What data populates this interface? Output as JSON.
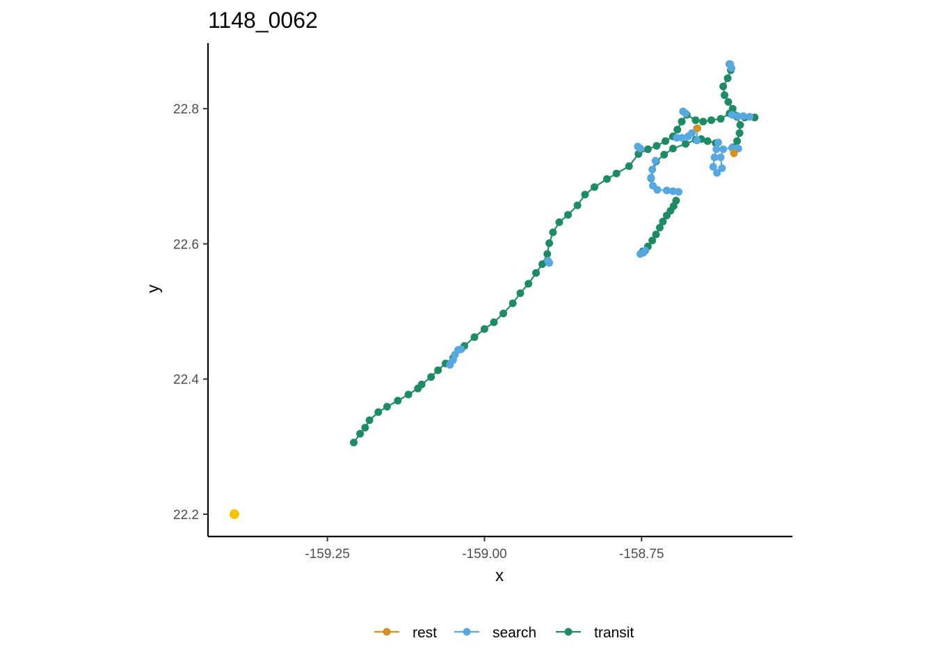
{
  "chart_data": {
    "type": "scatter",
    "title": "1148_0062",
    "xlabel": "x",
    "ylabel": "y",
    "xlim": [
      -159.44,
      -158.51
    ],
    "ylim": [
      22.167,
      22.897
    ],
    "x_ticks": [
      -159.25,
      -159.0,
      -158.75
    ],
    "x_tick_labels": [
      "-159.25",
      "-159.00",
      "-158.75"
    ],
    "y_ticks": [
      22.2,
      22.4,
      22.6,
      22.8
    ],
    "y_tick_labels": [
      "22.2",
      "22.4",
      "22.6",
      "22.8"
    ],
    "grid": false,
    "legend_position": "bottom",
    "colors": {
      "rest": "#d4911f",
      "search": "#56a8e0",
      "transit": "#1e8c63",
      "start": "#f5c400"
    },
    "series": [
      {
        "name": "transit",
        "connected": true,
        "points": [
          [
            -159.208,
            22.306
          ],
          [
            -159.198,
            22.319
          ],
          [
            -159.19,
            22.328
          ],
          [
            -159.183,
            22.339
          ],
          [
            -159.169,
            22.351
          ],
          [
            -159.155,
            22.359
          ],
          [
            -159.138,
            22.368
          ],
          [
            -159.121,
            22.377
          ],
          [
            -159.106,
            22.386
          ],
          [
            -159.1,
            22.392
          ],
          [
            -159.085,
            22.403
          ],
          [
            -159.074,
            22.413
          ],
          [
            -159.062,
            22.423
          ],
          [
            -159.05,
            22.431
          ],
          [
            -159.032,
            22.449
          ],
          [
            -159.016,
            22.462
          ],
          [
            -159.0,
            22.474
          ],
          [
            -158.985,
            22.484
          ],
          [
            -158.97,
            22.497
          ],
          [
            -158.955,
            22.512
          ],
          [
            -158.943,
            22.527
          ],
          [
            -158.93,
            22.541
          ],
          [
            -158.918,
            22.557
          ],
          [
            -158.908,
            22.57
          ],
          [
            -158.9,
            22.585
          ],
          [
            -158.897,
            22.601
          ],
          [
            -158.891,
            22.617
          ],
          [
            -158.881,
            22.632
          ],
          [
            -158.867,
            22.643
          ],
          [
            -158.852,
            22.657
          ],
          [
            -158.84,
            22.673
          ],
          [
            -158.825,
            22.684
          ],
          [
            -158.805,
            22.696
          ],
          [
            -158.79,
            22.704
          ],
          [
            -158.77,
            22.715
          ],
          [
            -158.755,
            22.733
          ],
          [
            -158.74,
            22.74
          ],
          [
            -158.726,
            22.745
          ],
          [
            -158.712,
            22.752
          ],
          [
            -158.7,
            22.759
          ],
          [
            -158.693,
            22.769
          ],
          [
            -158.686,
            22.781
          ],
          [
            -158.678,
            22.791
          ],
          [
            -158.664,
            22.783
          ],
          [
            -158.652,
            22.781
          ],
          [
            -158.639,
            22.783
          ],
          [
            -158.624,
            22.785
          ],
          [
            -158.61,
            22.793
          ],
          [
            -158.6,
            22.79
          ],
          [
            -158.586,
            22.787
          ],
          [
            -158.57,
            22.787
          ]
        ]
      },
      {
        "name": "transit",
        "connected": true,
        "points": [
          [
            -158.748,
            22.589
          ],
          [
            -158.74,
            22.596
          ],
          [
            -158.733,
            22.605
          ],
          [
            -158.727,
            22.614
          ],
          [
            -158.721,
            22.624
          ],
          [
            -158.716,
            22.633
          ],
          [
            -158.71,
            22.642
          ],
          [
            -158.704,
            22.649
          ],
          [
            -158.699,
            22.656
          ],
          [
            -158.695,
            22.664
          ]
        ]
      },
      {
        "name": "transit",
        "connected": true,
        "points": [
          [
            -158.735,
            22.697
          ],
          [
            -158.727,
            22.722
          ],
          [
            -158.714,
            22.732
          ],
          [
            -158.7,
            22.741
          ],
          [
            -158.68,
            22.748
          ],
          [
            -158.664,
            22.754
          ],
          [
            -158.655,
            22.755
          ],
          [
            -158.645,
            22.752
          ],
          [
            -158.632,
            22.749
          ]
        ]
      },
      {
        "name": "transit",
        "connected": true,
        "points": [
          [
            -158.605,
            22.743
          ],
          [
            -158.598,
            22.752
          ],
          [
            -158.594,
            22.764
          ],
          [
            -158.593,
            22.776
          ],
          [
            -158.598,
            22.788
          ],
          [
            -158.605,
            22.8
          ],
          [
            -158.612,
            22.81
          ],
          [
            -158.618,
            22.82
          ],
          [
            -158.62,
            22.833
          ],
          [
            -158.613,
            22.845
          ],
          [
            -158.608,
            22.857
          ],
          [
            -158.61,
            22.866
          ]
        ]
      },
      {
        "name": "search",
        "connected": true,
        "points": [
          [
            -159.055,
            22.421
          ],
          [
            -159.05,
            22.428
          ],
          [
            -159.047,
            22.436
          ],
          [
            -159.042,
            22.443
          ],
          [
            -159.037,
            22.444
          ]
        ]
      },
      {
        "name": "search",
        "connected": true,
        "points": [
          [
            -158.899,
            22.575
          ],
          [
            -158.897,
            22.572
          ]
        ]
      },
      {
        "name": "search",
        "connected": true,
        "points": [
          [
            -158.756,
            22.744
          ],
          [
            -158.752,
            22.741
          ]
        ]
      },
      {
        "name": "search",
        "connected": true,
        "points": [
          [
            -158.752,
            22.585
          ],
          [
            -158.747,
            22.587
          ],
          [
            -158.744,
            22.59
          ]
        ]
      },
      {
        "name": "search",
        "connected": true,
        "points": [
          [
            -158.728,
            22.723
          ],
          [
            -158.733,
            22.71
          ],
          [
            -158.735,
            22.698
          ],
          [
            -158.732,
            22.686
          ],
          [
            -158.725,
            22.68
          ],
          [
            -158.71,
            22.679
          ],
          [
            -158.7,
            22.678
          ],
          [
            -158.691,
            22.677
          ]
        ]
      },
      {
        "name": "search",
        "connected": true,
        "points": [
          [
            -158.684,
            22.796
          ],
          [
            -158.68,
            22.793
          ]
        ]
      },
      {
        "name": "search",
        "connected": true,
        "points": [
          [
            -158.694,
            22.757
          ],
          [
            -158.686,
            22.757
          ],
          [
            -158.676,
            22.759
          ],
          [
            -158.67,
            22.764
          ],
          [
            -158.662,
            22.771
          ],
          [
            -158.662,
            22.753
          ]
        ]
      },
      {
        "name": "search",
        "connected": true,
        "points": [
          [
            -158.628,
            22.75
          ],
          [
            -158.631,
            22.74
          ],
          [
            -158.634,
            22.728
          ],
          [
            -158.636,
            22.714
          ],
          [
            -158.63,
            22.705
          ],
          [
            -158.622,
            22.712
          ],
          [
            -158.624,
            22.728
          ],
          [
            -158.62,
            22.74
          ],
          [
            -158.606,
            22.742
          ],
          [
            -158.596,
            22.741
          ]
        ]
      },
      {
        "name": "search",
        "connected": true,
        "points": [
          [
            -158.606,
            22.791
          ],
          [
            -158.597,
            22.789
          ],
          [
            -158.588,
            22.789
          ],
          [
            -158.578,
            22.788
          ]
        ]
      },
      {
        "name": "search",
        "connected": true,
        "points": [
          [
            -158.609,
            22.866
          ],
          [
            -158.607,
            22.86
          ]
        ]
      },
      {
        "name": "rest",
        "connected": false,
        "points": [
          [
            -158.661,
            22.771
          ],
          [
            -158.603,
            22.734
          ]
        ]
      },
      {
        "name": "start",
        "connected": false,
        "points": [
          [
            -159.398,
            22.2
          ]
        ]
      }
    ],
    "legend": [
      {
        "series": "rest",
        "label": "rest"
      },
      {
        "series": "search",
        "label": "search"
      },
      {
        "series": "transit",
        "label": "transit"
      }
    ]
  }
}
